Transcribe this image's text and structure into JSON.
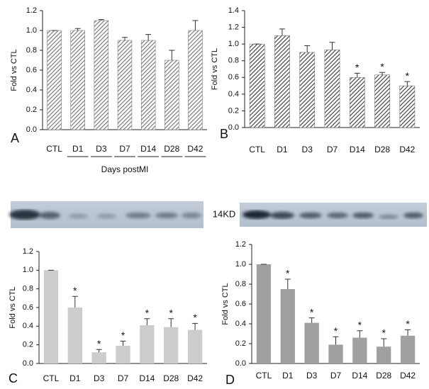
{
  "chart_data": [
    {
      "type": "bar",
      "panel": "A",
      "ylabel": "Fold vs CTL",
      "xlabel": "Days postMI",
      "categories": [
        "CTL",
        "D1",
        "D3",
        "D7",
        "D14",
        "D28",
        "D42"
      ],
      "values": [
        1.0,
        1.0,
        1.1,
        0.9,
        0.9,
        0.7,
        1.0
      ],
      "errors": [
        0,
        0.02,
        0.01,
        0.03,
        0.06,
        0.1,
        0.1
      ],
      "markers": [
        null,
        null,
        null,
        null,
        null,
        null,
        null
      ],
      "color": "#7a7a7a",
      "hatch": true,
      "ylim": [
        0,
        1.2
      ],
      "yticks": [
        {
          "value": 0,
          "label": "0.0"
        },
        0.2,
        0.4,
        0.6,
        0.8,
        {
          "value": 1,
          "label": "1.0"
        },
        1.2
      ]
    },
    {
      "type": "bar",
      "panel": "B",
      "ylabel": "Fold vs CTL",
      "categories": [
        "CTL",
        "D1",
        "D3",
        "D7",
        "D14",
        "D28",
        "D42"
      ],
      "values": [
        1.0,
        1.1,
        0.9,
        0.93,
        0.6,
        0.63,
        0.5
      ],
      "errors": [
        0,
        0.08,
        0.08,
        0.09,
        0.05,
        0.03,
        0.05
      ],
      "markers": [
        null,
        null,
        null,
        null,
        "*",
        "*",
        "*"
      ],
      "color": "#444444",
      "hatch": true,
      "ylim": [
        0,
        1.4
      ],
      "yticks": [
        {
          "value": 0,
          "label": "0.0"
        },
        0.2,
        0.4,
        0.6,
        0.8,
        {
          "value": 1,
          "label": "1.0"
        },
        1.2,
        1.4
      ]
    },
    {
      "type": "bar",
      "panel": "C",
      "ylabel": "Fold vs CTL",
      "categories": [
        "CTL",
        "D1",
        "D3",
        "D7",
        "D14",
        "D28",
        "D42"
      ],
      "values": [
        1.0,
        0.6,
        0.12,
        0.19,
        0.41,
        0.39,
        0.36
      ],
      "errors": [
        0,
        0.12,
        0.03,
        0.05,
        0.07,
        0.09,
        0.07
      ],
      "markers": [
        null,
        "*",
        "*",
        "*",
        "*",
        "*",
        "*"
      ],
      "color": "#cccccc",
      "hatch": false,
      "ylim": [
        0,
        1.2
      ],
      "yticks": [
        {
          "value": 0,
          "label": "0.0"
        },
        0.2,
        0.4,
        0.6,
        0.8,
        {
          "value": 1,
          "label": "1.0"
        },
        1.2
      ]
    },
    {
      "type": "bar",
      "panel": "D",
      "ylabel": "Fold vs CTL",
      "categories": [
        "CTL",
        "D1",
        "D3",
        "D7",
        "D14",
        "D28",
        "D42"
      ],
      "values": [
        1.0,
        0.75,
        0.41,
        0.19,
        0.26,
        0.17,
        0.28
      ],
      "errors": [
        0,
        0.1,
        0.05,
        0.08,
        0.07,
        0.08,
        0.06
      ],
      "markers": [
        null,
        "*",
        "*",
        "*",
        "*",
        "*",
        "*"
      ],
      "color": "#a0a0a0",
      "hatch": false,
      "ylim": [
        0,
        1.2
      ],
      "yticks": [
        {
          "value": 0,
          "label": "0.0"
        },
        0.2,
        0.4,
        0.6,
        0.8,
        {
          "value": 1,
          "label": "1.0"
        },
        1.2
      ]
    }
  ],
  "blot_label": "14KD"
}
